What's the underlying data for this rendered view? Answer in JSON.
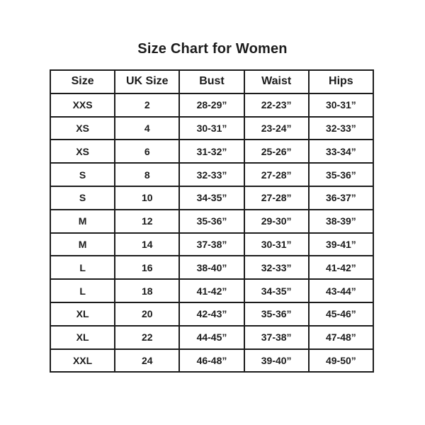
{
  "title": "Size Chart for Women",
  "table": {
    "headers": [
      "Size",
      "UK Size",
      "Bust",
      "Waist",
      "Hips"
    ],
    "rows": [
      [
        "XXS",
        "2",
        "28-29”",
        "22-23”",
        "30-31”"
      ],
      [
        "XS",
        "4",
        "30-31”",
        "23-24”",
        "32-33”"
      ],
      [
        "XS",
        "6",
        "31-32”",
        "25-26”",
        "33-34”"
      ],
      [
        "S",
        "8",
        "32-33”",
        "27-28”",
        "35-36”"
      ],
      [
        "S",
        "10",
        "34-35”",
        "27-28”",
        "36-37”"
      ],
      [
        "M",
        "12",
        "35-36”",
        "29-30”",
        "38-39”"
      ],
      [
        "M",
        "14",
        "37-38”",
        "30-31”",
        "39-41”"
      ],
      [
        "L",
        "16",
        "38-40”",
        "32-33”",
        "41-42”"
      ],
      [
        "L",
        "18",
        "41-42”",
        "34-35”",
        "43-44”"
      ],
      [
        "XL",
        "20",
        "42-43”",
        "35-36”",
        "45-46”"
      ],
      [
        "XL",
        "22",
        "44-45”",
        "37-38”",
        "47-48”"
      ],
      [
        "XXL",
        "24",
        "46-48”",
        "39-40”",
        "49-50”"
      ]
    ],
    "column_keys": [
      "size",
      "uk-size",
      "bust",
      "waist",
      "hips"
    ]
  },
  "chart_data": {
    "type": "table",
    "title": "Size Chart for Women",
    "columns": [
      "Size",
      "UK Size",
      "Bust",
      "Waist",
      "Hips"
    ],
    "rows": [
      [
        "XXS",
        "2",
        "28-29”",
        "22-23”",
        "30-31”"
      ],
      [
        "XS",
        "4",
        "30-31”",
        "23-24”",
        "32-33”"
      ],
      [
        "XS",
        "6",
        "31-32”",
        "25-26”",
        "33-34”"
      ],
      [
        "S",
        "8",
        "32-33”",
        "27-28”",
        "35-36”"
      ],
      [
        "S",
        "10",
        "34-35”",
        "27-28”",
        "36-37”"
      ],
      [
        "M",
        "12",
        "35-36”",
        "29-30”",
        "38-39”"
      ],
      [
        "M",
        "14",
        "37-38”",
        "30-31”",
        "39-41”"
      ],
      [
        "L",
        "16",
        "38-40”",
        "32-33”",
        "41-42”"
      ],
      [
        "L",
        "18",
        "41-42”",
        "34-35”",
        "43-44”"
      ],
      [
        "XL",
        "20",
        "42-43”",
        "35-36”",
        "45-46”"
      ],
      [
        "XL",
        "22",
        "44-45”",
        "37-38”",
        "47-48”"
      ],
      [
        "XXL",
        "24",
        "46-48”",
        "39-40”",
        "49-50”"
      ]
    ]
  },
  "colors": {
    "background": "#ffffff",
    "text": "#1c1c1c",
    "border": "#1c1c1c"
  }
}
